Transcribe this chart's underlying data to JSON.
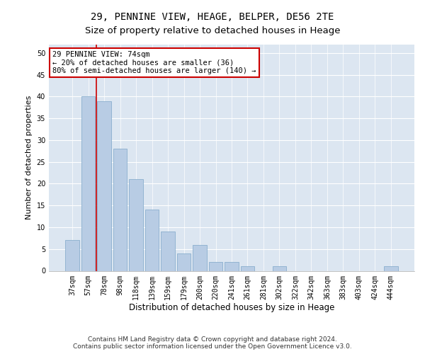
{
  "title": "29, PENNINE VIEW, HEAGE, BELPER, DE56 2TE",
  "subtitle": "Size of property relative to detached houses in Heage",
  "xlabel": "Distribution of detached houses by size in Heage",
  "ylabel": "Number of detached properties",
  "categories": [
    "37sqm",
    "57sqm",
    "78sqm",
    "98sqm",
    "118sqm",
    "139sqm",
    "159sqm",
    "179sqm",
    "200sqm",
    "220sqm",
    "241sqm",
    "261sqm",
    "281sqm",
    "302sqm",
    "322sqm",
    "342sqm",
    "363sqm",
    "383sqm",
    "403sqm",
    "424sqm",
    "444sqm"
  ],
  "values": [
    7,
    40,
    39,
    28,
    21,
    14,
    9,
    4,
    6,
    2,
    2,
    1,
    0,
    1,
    0,
    0,
    0,
    0,
    0,
    0,
    1
  ],
  "bar_color": "#b8cce4",
  "bar_edgecolor": "#7da6c8",
  "vline_color": "#cc0000",
  "annotation_text": "29 PENNINE VIEW: 74sqm\n← 20% of detached houses are smaller (36)\n80% of semi-detached houses are larger (140) →",
  "annotation_box_color": "#ffffff",
  "annotation_box_edgecolor": "#cc0000",
  "ylim": [
    0,
    52
  ],
  "yticks": [
    0,
    5,
    10,
    15,
    20,
    25,
    30,
    35,
    40,
    45,
    50
  ],
  "background_color": "#dce6f1",
  "footer_line1": "Contains HM Land Registry data © Crown copyright and database right 2024.",
  "footer_line2": "Contains public sector information licensed under the Open Government Licence v3.0.",
  "title_fontsize": 10,
  "subtitle_fontsize": 9.5,
  "xlabel_fontsize": 8.5,
  "ylabel_fontsize": 8,
  "tick_fontsize": 7,
  "footer_fontsize": 6.5,
  "annotation_fontsize": 7.5
}
